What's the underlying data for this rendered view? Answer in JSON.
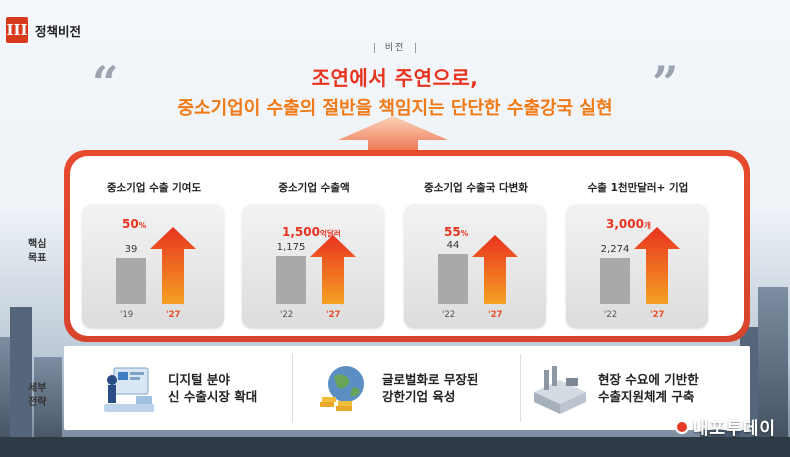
{
  "section": {
    "number": "III",
    "title": "정책비전"
  },
  "vision": {
    "label": "비전",
    "headline_line1": "조연에서 주연으로,",
    "headline_line2": "중소기업이 수출의 절반을 책임지는 단단한 수출강국 실현"
  },
  "side_labels": {
    "targets": "핵심\n목표",
    "strategy": "세부\n전략"
  },
  "targets": [
    {
      "title": "중소기업 수출 기여도",
      "before_value": "39",
      "after_value": "50",
      "after_unit": "%",
      "before_year": "'19",
      "after_year": "'27",
      "before_level": 0.48,
      "after_level": 0.8
    },
    {
      "title": "중소기업 수출액",
      "before_value": "1,175",
      "after_value": "1,500",
      "after_unit": "억달러",
      "before_year": "'22",
      "after_year": "'27",
      "before_level": 0.5,
      "after_level": 0.72
    },
    {
      "title": "중소기업 수출국 다변화",
      "before_value": "44",
      "after_value": "55",
      "after_unit": "%",
      "before_year": "'22",
      "after_year": "'27",
      "before_level": 0.52,
      "after_level": 0.72
    },
    {
      "title": "수출 1천만달러+ 기업",
      "before_value": "2,274",
      "after_value": "3,000",
      "after_unit": "개",
      "before_year": "'22",
      "after_year": "'27",
      "before_level": 0.48,
      "after_level": 0.8
    }
  ],
  "strategies": [
    {
      "line1": "디지털 분야",
      "line2": "신 수출시장 확대",
      "icon": "digital-market-icon"
    },
    {
      "line1": "글로벌화로 무장된",
      "line2": "강한기업 육성",
      "icon": "globe-gold-icon"
    },
    {
      "line1": "현장 수요에 기반한",
      "line2": "수출지원체계 구축",
      "icon": "factory-icon"
    }
  ],
  "watermark": "내포투데이",
  "colors": {
    "accent_red": "#e8331f",
    "accent_orange": "#f07a16",
    "bar_gray": "#a9a9a9"
  }
}
